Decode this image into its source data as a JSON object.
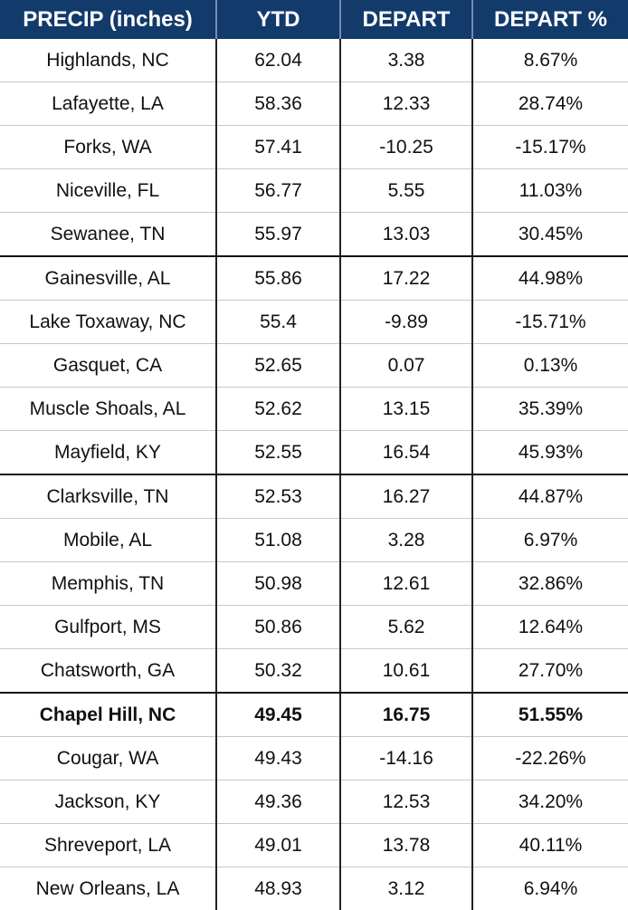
{
  "headers": [
    "PRECIP (inches)",
    "YTD",
    "DEPART",
    "DEPART %"
  ],
  "rows": [
    [
      "Highlands, NC",
      "62.04",
      "3.38",
      "8.67%"
    ],
    [
      "Lafayette, LA",
      "58.36",
      "12.33",
      "28.74%"
    ],
    [
      "Forks, WA",
      "57.41",
      "-10.25",
      "-15.17%"
    ],
    [
      "Niceville, FL",
      "56.77",
      "5.55",
      "11.03%"
    ],
    [
      "Sewanee, TN",
      "55.97",
      "13.03",
      "30.45%"
    ],
    [
      "Gainesville, AL",
      "55.86",
      "17.22",
      "44.98%"
    ],
    [
      "Lake Toxaway, NC",
      "55.4",
      "-9.89",
      "-15.71%"
    ],
    [
      "Gasquet, CA",
      "52.65",
      "0.07",
      "0.13%"
    ],
    [
      "Muscle Shoals, AL",
      "52.62",
      "13.15",
      "35.39%"
    ],
    [
      "Mayfield, KY",
      "52.55",
      "16.54",
      "45.93%"
    ],
    [
      "Clarksville, TN",
      "52.53",
      "16.27",
      "44.87%"
    ],
    [
      "Mobile, AL",
      "51.08",
      "3.28",
      "6.97%"
    ],
    [
      "Memphis, TN",
      "50.98",
      "12.61",
      "32.86%"
    ],
    [
      "Gulfport, MS",
      "50.86",
      "5.62",
      "12.64%"
    ],
    [
      "Chatsworth, GA",
      "50.32",
      "10.61",
      "27.70%"
    ],
    [
      "Chapel Hill, NC",
      "49.45",
      "16.75",
      "51.55%"
    ],
    [
      "Cougar, WA",
      "49.43",
      "-14.16",
      "-22.26%"
    ],
    [
      "Jackson, KY",
      "49.36",
      "12.53",
      "34.20%"
    ],
    [
      "Shreveport, LA",
      "49.01",
      "13.78",
      "40.11%"
    ],
    [
      "New Orleans, LA",
      "48.93",
      "3.12",
      "6.94%"
    ]
  ],
  "highlighted_city": "Chapel Hill, NC",
  "colors": {
    "header_bg": "#123a6b",
    "header_text": "#ffffff"
  }
}
